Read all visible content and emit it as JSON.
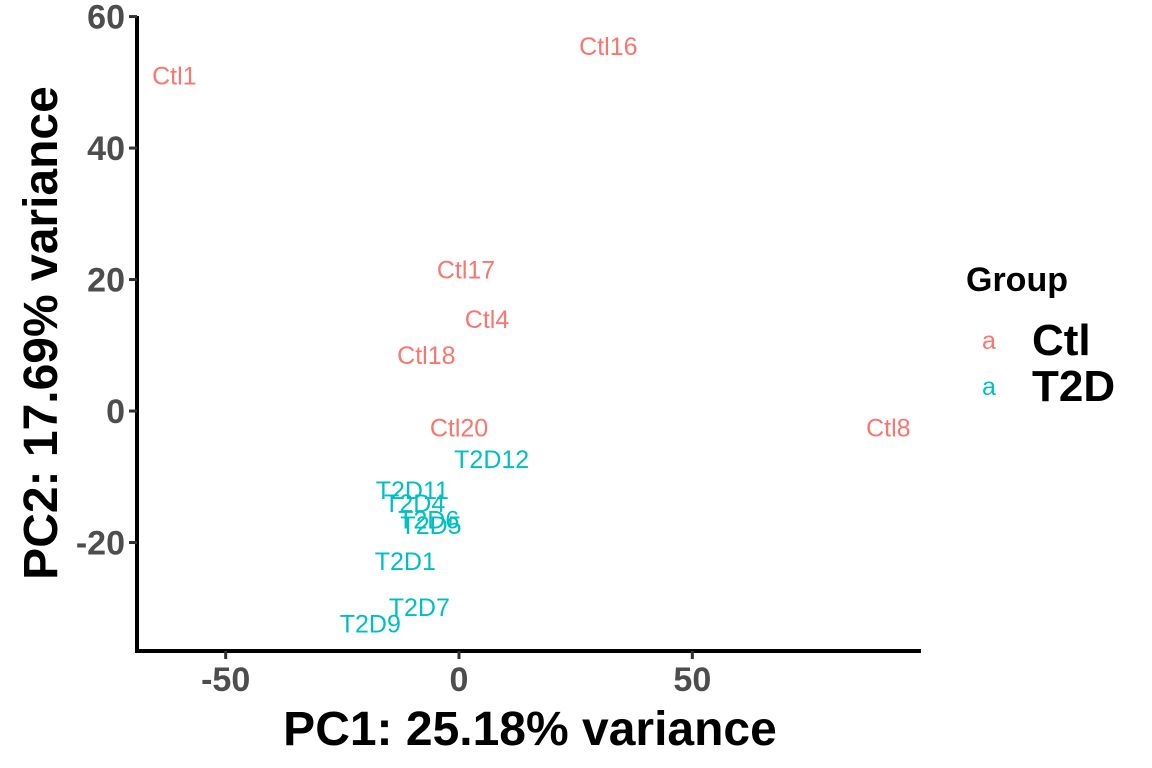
{
  "chart_data": {
    "type": "scatter",
    "xlabel": "PC1: 25.18% variance",
    "ylabel": "PC2: 17.69% variance",
    "xlim": [
      -69,
      99
    ],
    "ylim": [
      -36.5,
      61
    ],
    "x_ticks": [
      -50,
      0,
      50
    ],
    "x_tick_labels": [
      "-50",
      "0",
      "50"
    ],
    "y_ticks": [
      -20,
      0,
      20,
      40,
      60
    ],
    "y_tick_labels": [
      "-20",
      "0",
      "20",
      "40",
      "60"
    ],
    "grid": false,
    "legend": {
      "title": "Group",
      "placement": "right",
      "key_glyph": "a",
      "entries": [
        {
          "label": "Ctl",
          "color": "#f8766d"
        },
        {
          "label": "T2D",
          "color": "#00bfc4"
        }
      ]
    },
    "series": [
      {
        "name": "Ctl",
        "color": "#f8766d",
        "points": [
          {
            "label": "Ctl1",
            "x": -61,
            "y": 51
          },
          {
            "label": "Ctl16",
            "x": 32,
            "y": 55.5
          },
          {
            "label": "Ctl17",
            "x": 1.5,
            "y": 21.5
          },
          {
            "label": "Ctl4",
            "x": 6,
            "y": 14
          },
          {
            "label": "Ctl18",
            "x": -7,
            "y": 8.5
          },
          {
            "label": "Ctl20",
            "x": 0,
            "y": -2.5
          },
          {
            "label": "Ctl8",
            "x": 92,
            "y": -2.5
          }
        ]
      },
      {
        "name": "T2D",
        "color": "#00bfc4",
        "points": [
          {
            "label": "T2D12",
            "x": 7,
            "y": -7.3
          },
          {
            "label": "T2D11",
            "x": -10,
            "y": -12
          },
          {
            "label": "T2D4",
            "x": -9.5,
            "y": -14
          },
          {
            "label": "T2D6",
            "x": -6.5,
            "y": -16.5
          },
          {
            "label": "T2D5",
            "x": -6,
            "y": -17.3
          },
          {
            "label": "T2D1",
            "x": -11.5,
            "y": -22.8
          },
          {
            "label": "T2D7",
            "x": -8.5,
            "y": -29.8
          },
          {
            "label": "T2D9",
            "x": -19,
            "y": -32.3
          }
        ]
      }
    ]
  }
}
